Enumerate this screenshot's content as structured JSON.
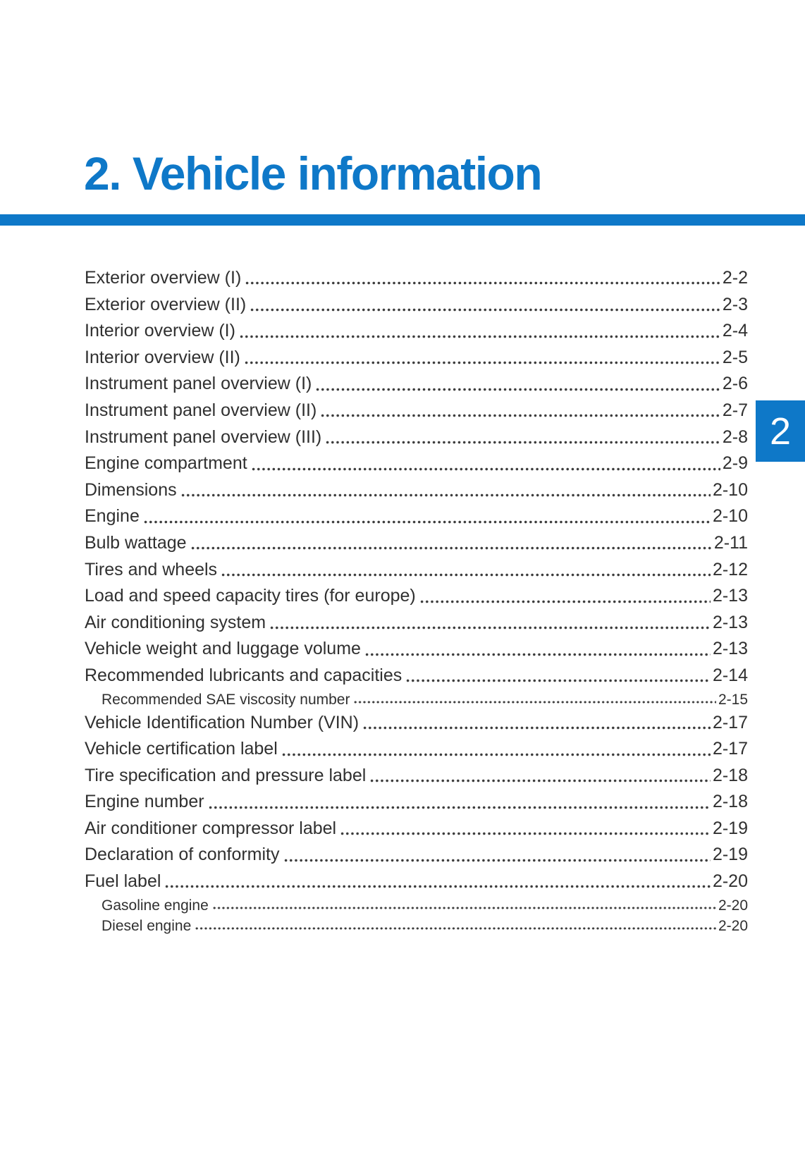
{
  "page": {
    "title": "2. Vehicle information",
    "chapter_tab": "2"
  },
  "colors": {
    "accent_blue": "#0e78c8",
    "text": "#303030"
  },
  "toc": {
    "entries": [
      {
        "label": "Exterior overview (I)",
        "page": "2-2",
        "level": 1
      },
      {
        "label": "Exterior overview (II)",
        "page": "2-3",
        "level": 1
      },
      {
        "label": "Interior overview (I)",
        "page": "2-4",
        "level": 1
      },
      {
        "label": "Interior overview (II)",
        "page": "2-5",
        "level": 1
      },
      {
        "label": "Instrument panel overview (I)",
        "page": "2-6",
        "level": 1
      },
      {
        "label": "Instrument panel overview (II)",
        "page": "2-7",
        "level": 1
      },
      {
        "label": "Instrument panel overview (III)",
        "page": "2-8",
        "level": 1
      },
      {
        "label": "Engine compartment",
        "page": "2-9",
        "level": 1
      },
      {
        "label": "Dimensions",
        "page": "2-10",
        "level": 1
      },
      {
        "label": "Engine",
        "page": "2-10",
        "level": 1
      },
      {
        "label": "Bulb wattage",
        "page": "2-11",
        "level": 1
      },
      {
        "label": "Tires and wheels",
        "page": "2-12",
        "level": 1
      },
      {
        "label": "Load and speed capacity tires (for europe)",
        "page": "2-13",
        "level": 1
      },
      {
        "label": "Air conditioning system",
        "page": "2-13",
        "level": 1
      },
      {
        "label": "Vehicle weight and luggage volume",
        "page": "2-13",
        "level": 1
      },
      {
        "label": "Recommended lubricants and capacities",
        "page": "2-14",
        "level": 1
      },
      {
        "label": "Recommended SAE viscosity number",
        "page": "2-15",
        "level": 2
      },
      {
        "label": "Vehicle Identification Number (VIN)",
        "page": "2-17",
        "level": 1
      },
      {
        "label": "Vehicle certification label",
        "page": "2-17",
        "level": 1
      },
      {
        "label": "Tire specification and pressure label",
        "page": "2-18",
        "level": 1
      },
      {
        "label": "Engine number",
        "page": "2-18",
        "level": 1
      },
      {
        "label": "Air conditioner compressor label",
        "page": "2-19",
        "level": 1
      },
      {
        "label": "Declaration of conformity",
        "page": "2-19",
        "level": 1
      },
      {
        "label": "Fuel label",
        "page": "2-20",
        "level": 1
      },
      {
        "label": "Gasoline engine",
        "page": "2-20",
        "level": 2
      },
      {
        "label": "Diesel engine",
        "page": "2-20",
        "level": 2
      }
    ]
  }
}
